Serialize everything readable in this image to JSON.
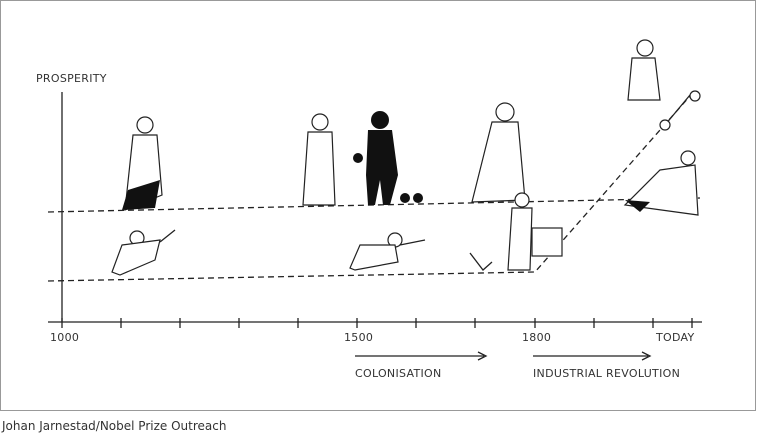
{
  "axis": {
    "label": "PROSPERITY",
    "ticks": [
      "1000",
      "1500",
      "1800",
      "TODAY"
    ]
  },
  "periods": [
    "COLONISATION",
    "INDUSTRIAL REVOLUTION"
  ],
  "credit": "Johan Jarnestad/Nobel Prize Outreach"
}
